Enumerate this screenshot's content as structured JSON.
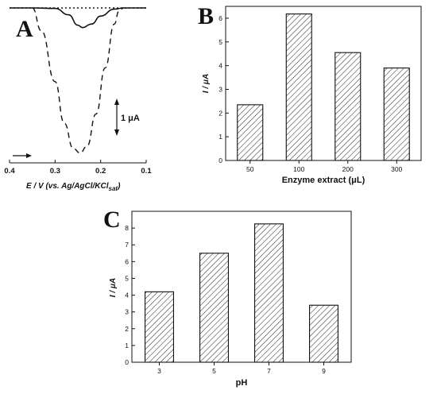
{
  "chart_data": [
    {
      "panel": "A",
      "type": "line",
      "xlabel": "E / V (vs. Ag/AgCl/KCl",
      "xlabel_sub": "sat",
      "xlabel_close": ")",
      "x_ticks": [
        "0.4",
        "0.3",
        "0.2",
        "0.1"
      ],
      "xlim": [
        0.4,
        0.1
      ],
      "scale_bar": "1 μA",
      "series": [
        {
          "style": "dotted",
          "x": [
            0.4,
            0.35,
            0.3,
            0.25,
            0.2,
            0.15,
            0.1
          ],
          "y": [
            0,
            0,
            0,
            0,
            0,
            0,
            0
          ]
        },
        {
          "style": "solid",
          "x": [
            0.4,
            0.35,
            0.3,
            0.27,
            0.25,
            0.24,
            0.22,
            0.2,
            0.17,
            0.15,
            0.1
          ],
          "y": [
            0,
            0,
            -0.02,
            -0.3,
            -0.75,
            -0.85,
            -0.7,
            -0.35,
            -0.05,
            0,
            0
          ]
        },
        {
          "style": "dashed",
          "x": [
            0.35,
            0.33,
            0.3,
            0.28,
            0.26,
            0.245,
            0.23,
            0.21,
            0.19,
            0.17,
            0.16,
            0.15
          ],
          "y": [
            0,
            -1.0,
            -3.2,
            -5.0,
            -6.1,
            -6.3,
            -6.0,
            -4.6,
            -2.6,
            -0.7,
            -0.15,
            0
          ]
        }
      ]
    },
    {
      "panel": "B",
      "type": "bar",
      "categories": [
        "50",
        "100",
        "200",
        "300"
      ],
      "values": [
        2.35,
        6.18,
        4.55,
        3.9
      ],
      "ylim": [
        0,
        6.5
      ],
      "y_ticks": [
        "0",
        "1",
        "2",
        "3",
        "4",
        "5",
        "6"
      ],
      "xlabel": "Enzyme extract (μL)",
      "ylabel": "I / μA"
    },
    {
      "panel": "C",
      "type": "bar",
      "categories": [
        "3",
        "5",
        "7",
        "9"
      ],
      "values": [
        4.2,
        6.5,
        8.25,
        3.4
      ],
      "ylim": [
        0,
        9
      ],
      "y_ticks": [
        "0",
        "1",
        "2",
        "3",
        "4",
        "5",
        "6",
        "7",
        "8"
      ],
      "xlabel": "pH",
      "ylabel": "I / μA"
    }
  ]
}
